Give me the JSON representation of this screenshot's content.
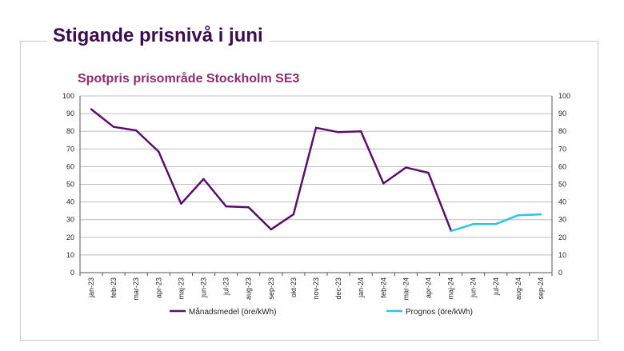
{
  "page": {
    "title": "Stigande prisnivå i juni"
  },
  "chart_data": {
    "type": "line",
    "title": "Spotpris prisområde Stockholm SE3",
    "xlabel": "",
    "ylabel": "",
    "ylim": [
      0,
      100
    ],
    "yticks": [
      0,
      10,
      20,
      30,
      40,
      50,
      60,
      70,
      80,
      90,
      100
    ],
    "grid": true,
    "secondary_y_axis": true,
    "categories": [
      "jan-23",
      "feb-23",
      "mar-23",
      "apr-23",
      "maj-23",
      "jun-23",
      "jul-23",
      "aug-23",
      "sep-23",
      "okt-23",
      "nov-23",
      "dec-23",
      "jan-24",
      "feb-24",
      "mar-24",
      "apr-24",
      "maj-24",
      "jun-24",
      "jul-24",
      "aug-24",
      "sep-24"
    ],
    "series": [
      {
        "name": "Månadsmedel (öre/kWh)",
        "color": "#5b0f6b",
        "values": [
          92.5,
          82.5,
          80.5,
          68.5,
          39,
          53,
          37.5,
          37,
          24.5,
          33,
          82,
          79.5,
          80,
          50.5,
          59.5,
          56.5,
          24,
          null,
          null,
          null,
          null
        ]
      },
      {
        "name": "Prognos (öre/kWh)",
        "color": "#2ec4e6",
        "values": [
          null,
          null,
          null,
          null,
          null,
          null,
          null,
          null,
          null,
          null,
          null,
          null,
          null,
          null,
          null,
          null,
          23.5,
          27.5,
          27.5,
          32.5,
          33
        ]
      }
    ],
    "legend_position": "bottom"
  }
}
